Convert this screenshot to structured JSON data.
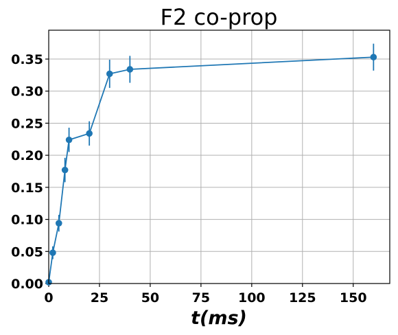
{
  "chart_data": {
    "type": "line",
    "title": "F2 co-prop",
    "xlabel": "t(ms)",
    "ylabel": "",
    "xlim": [
      0,
      168
    ],
    "ylim": [
      0,
      0.395
    ],
    "grid": true,
    "color": "#1f77b4",
    "x_ticks": [
      0,
      25,
      50,
      75,
      100,
      125,
      150
    ],
    "x_tick_labels": [
      "0",
      "25",
      "50",
      "75",
      "100",
      "125",
      "150"
    ],
    "y_ticks": [
      0,
      0.05,
      0.1,
      0.15,
      0.2,
      0.25,
      0.3,
      0.35
    ],
    "y_tick_labels": [
      "0.00",
      "0.05",
      "0.10",
      "0.15",
      "0.20",
      "0.25",
      "0.30",
      "0.35"
    ],
    "series": [
      {
        "x": [
          0,
          2,
          5,
          8,
          10,
          20,
          30,
          40,
          160
        ],
        "y": [
          0.002,
          0.048,
          0.094,
          0.177,
          0.224,
          0.234,
          0.327,
          0.334,
          0.353
        ],
        "yerr": [
          0.004,
          0.01,
          0.013,
          0.019,
          0.019,
          0.019,
          0.022,
          0.021,
          0.021
        ]
      }
    ]
  }
}
